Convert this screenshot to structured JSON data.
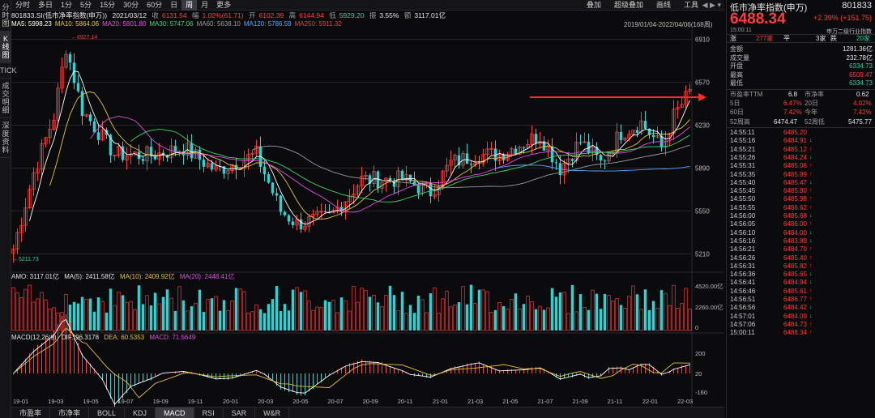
{
  "rail": [
    "分时图",
    "K线图",
    "TICK",
    "成交明细",
    "深度资料"
  ],
  "timeframes": [
    "分时",
    "多日",
    "1分",
    "5分",
    "15分",
    "30分",
    "60分",
    "日",
    "周",
    "月",
    "更多"
  ],
  "active_timeframe": "周",
  "tools": [
    "叠加",
    "超级叠加",
    "画线",
    "工具"
  ],
  "headline": {
    "code_name": "801833.SI(低市净率指数(申万))",
    "date": "2021/03/12",
    "close_label": "收",
    "close": "6131.54",
    "pct_label": "幅",
    "pct": "1.02%(61.71)",
    "open_label": "开",
    "open": "6102.39",
    "high_label": "高",
    "high": "6144.94",
    "low_label": "低",
    "low": "5929.20",
    "amp_label": "振",
    "amp": "3.55%",
    "amt_label": "额",
    "amt": "3117.01亿"
  },
  "ma": [
    {
      "label": "MA5",
      "value": "5998.23",
      "color": "#ffffff"
    },
    {
      "label": "MA10",
      "value": "5864.06",
      "color": "#e8c23a"
    },
    {
      "label": "MA20",
      "value": "5801.80",
      "color": "#e14ce6"
    },
    {
      "label": "MA30",
      "value": "5747.06",
      "color": "#3cd36b"
    },
    {
      "label": "MA60",
      "value": "5638.10",
      "color": "#9a9a9a"
    },
    {
      "label": "MA120",
      "value": "5786.59",
      "color": "#4fa8ff"
    },
    {
      "label": "MA250",
      "value": "5911.32",
      "color": "#e04040"
    }
  ],
  "range": "2019/01/04-2022/04/06(168周)",
  "price_axis": [
    "6910",
    "6570",
    "6230",
    "5890",
    "5550",
    "5210"
  ],
  "max_label": "6927.14",
  "min_label": "5211.73",
  "volume": {
    "label": "AMO: 3117.01亿",
    "ma5": "MA(5): 2411.58亿",
    "ma10": "MA(10): 2409.92亿",
    "ma20": "MA(20): 2448.41亿",
    "axis": [
      "4520.00亿",
      "2260.00亿",
      "0"
    ]
  },
  "macd": {
    "label": "MACD(12,26,9)",
    "dif": "DIF: 96.3178",
    "dea": "DEA: 60.5353",
    "macd": "MACD: 71.5649",
    "axis": [
      "200",
      "20",
      "-160"
    ]
  },
  "x_axis": [
    "19-01",
    "19-03",
    "19-05",
    "19-07",
    "19-09",
    "19-11",
    "20-01",
    "20-03",
    "20-05",
    "20-07",
    "20-09",
    "20-11",
    "21-01",
    "21-03",
    "21-05",
    "21-07",
    "21-09",
    "21-11",
    "22-01",
    "22-03"
  ],
  "indicator_tabs": [
    "市盈率",
    "市净率",
    "BOLL",
    "KDJ",
    "MACD",
    "RSI",
    "SAR",
    "W&R"
  ],
  "active_indicator": "MACD",
  "panel": {
    "name": "低市净率指数(申万)",
    "code": "801833",
    "price": "6488.34",
    "change": "+2.39%  (+151.75)",
    "time": "15:00:11",
    "industry": "申万二级行业指数",
    "up_label": "涨",
    "up_count": "277家",
    "flat_label": "平",
    "flat_count": "3家",
    "down_label": "跌",
    "down_count": "20家",
    "stats": [
      {
        "k": "金额",
        "v": "1281.36亿",
        "c": "wh"
      },
      {
        "k": "成交量",
        "v": "232.78亿",
        "c": "wh"
      },
      {
        "k": "开盘",
        "v": "6334.73",
        "c": "dn"
      },
      {
        "k": "最高",
        "v": "6509.47",
        "c": "up"
      },
      {
        "k": "最低",
        "v": "6334.73",
        "c": "dn"
      }
    ],
    "pe_label": "市盈率TTM",
    "pe": "6.8",
    "pb_label": "市净率",
    "pb": "0.62",
    "perf": [
      {
        "a": "5日",
        "av": "6.47%",
        "b": "20日",
        "bv": "4.02%"
      },
      {
        "a": "60日",
        "av": "7.42%",
        "b": "今年",
        "bv": "7.42%"
      }
    ],
    "wk52h_label": "52周高",
    "wk52h": "6474.47",
    "wk52l_label": "52周低",
    "wk52l": "5475.77",
    "ticks": [
      {
        "t": "14:55:11",
        "p": "6485.20"
      },
      {
        "t": "14:55:16",
        "p": "6484.91",
        "a": "↓"
      },
      {
        "t": "14:55:21",
        "p": "6485.12",
        "a": "↑"
      },
      {
        "t": "14:55:26",
        "p": "6484.24",
        "a": "↓"
      },
      {
        "t": "14:55:31",
        "p": "6485.06",
        "a": "↑"
      },
      {
        "t": "14:55:35",
        "p": "6485.89",
        "a": "↑"
      },
      {
        "t": "14:55:40",
        "p": "6485.47",
        "a": "↓"
      },
      {
        "t": "14:55:45",
        "p": "6485.80",
        "a": "↑"
      },
      {
        "t": "14:55:50",
        "p": "6485.98",
        "a": "↑"
      },
      {
        "t": "14:55:55",
        "p": "6486.62",
        "a": "↑"
      },
      {
        "t": "14:56:00",
        "p": "6485.68",
        "a": "↓"
      },
      {
        "t": "14:56:05",
        "p": "6486.00",
        "a": "↑"
      },
      {
        "t": "14:56:10",
        "p": "6484.00",
        "a": "↓"
      },
      {
        "t": "14:56:16",
        "p": "6483.89",
        "a": "↓"
      },
      {
        "t": "14:56:21",
        "p": "6484.70",
        "a": "↑"
      },
      {
        "t": "14:56:26",
        "p": "6485.40",
        "a": "↑"
      },
      {
        "t": "14:56:31",
        "p": "6485.82",
        "a": "↑"
      },
      {
        "t": "14:56:36",
        "p": "6485.65",
        "a": "↓"
      },
      {
        "t": "14:56:41",
        "p": "6484.94",
        "a": "↓"
      },
      {
        "t": "14:56:46",
        "p": "6485.61",
        "a": "↑"
      },
      {
        "t": "14:56:51",
        "p": "6486.77",
        "a": "↑"
      },
      {
        "t": "14:56:56",
        "p": "6484.42",
        "a": "↓"
      },
      {
        "t": "14:57:01",
        "p": "6484.09",
        "a": "↓"
      },
      {
        "t": "14:57:06",
        "p": "6484.73",
        "a": "↑"
      },
      {
        "t": "15:00:11",
        "p": "6488.34",
        "a": "↑"
      }
    ]
  },
  "colors": {
    "up": "#ff3b3b",
    "down": "#2bd3d3",
    "bg": "#0b0b0d",
    "grid": "#262629"
  }
}
